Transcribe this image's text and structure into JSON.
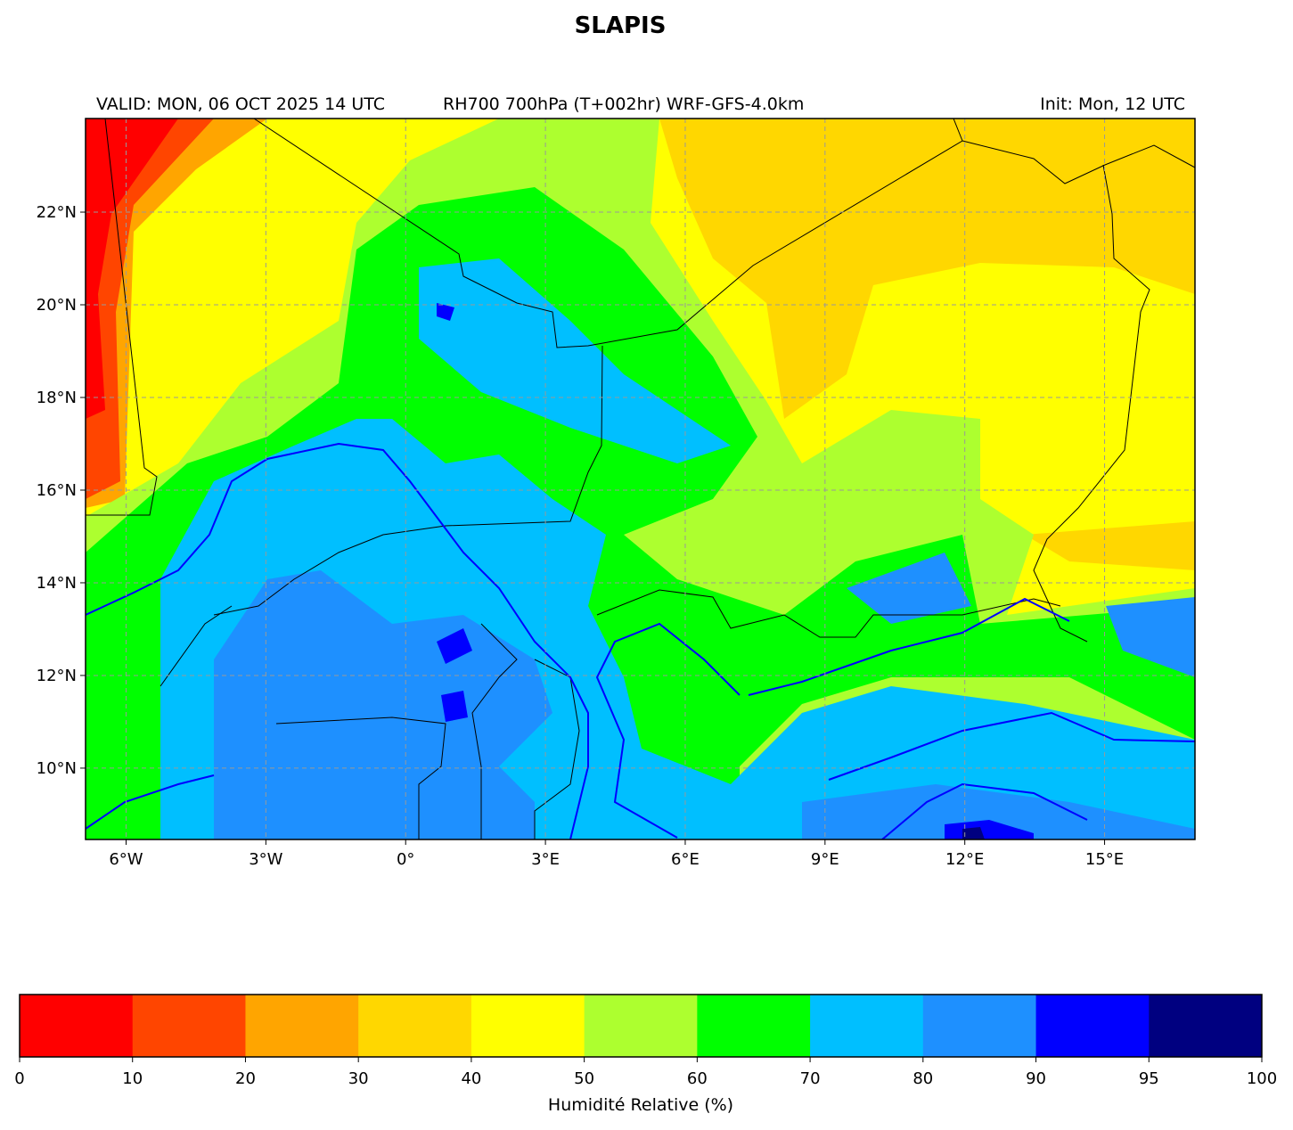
{
  "title": "SLAPIS",
  "header": {
    "valid": "VALID: MON, 06 OCT 2025 14 UTC",
    "field": "RH700 700hPa (T+002hr) WRF-GFS-4.0km",
    "init": "Init: Mon, 12 UTC"
  },
  "map": {
    "xlim": [
      -6.87,
      16.94
    ],
    "ylim": [
      8.46,
      24.02
    ],
    "xticks": [
      {
        "value": -6,
        "label": "6°W"
      },
      {
        "value": -3,
        "label": "3°W"
      },
      {
        "value": 0,
        "label": "0°"
      },
      {
        "value": 3,
        "label": "3°E"
      },
      {
        "value": 6,
        "label": "6°E"
      },
      {
        "value": 9,
        "label": "9°E"
      },
      {
        "value": 12,
        "label": "12°E"
      },
      {
        "value": 15,
        "label": "15°E"
      }
    ],
    "yticks": [
      {
        "value": 10,
        "label": "10°N"
      },
      {
        "value": 12,
        "label": "12°N"
      },
      {
        "value": 14,
        "label": "14°N"
      },
      {
        "value": 16,
        "label": "16°N"
      },
      {
        "value": 18,
        "label": "18°N"
      },
      {
        "value": 20,
        "label": "20°N"
      },
      {
        "value": 22,
        "label": "22°N"
      }
    ],
    "grid": true
  },
  "colorbar": {
    "label": "Humidité Relative (%)",
    "boundaries": [
      0,
      10,
      20,
      30,
      40,
      50,
      60,
      70,
      80,
      90,
      95,
      100
    ],
    "colors": [
      "#ff0000",
      "#ff4500",
      "#ffa500",
      "#ffd700",
      "#ffff00",
      "#adff2f",
      "#00ff00",
      "#00bfff",
      "#1e90ff",
      "#0000ff",
      "#000080"
    ]
  }
}
